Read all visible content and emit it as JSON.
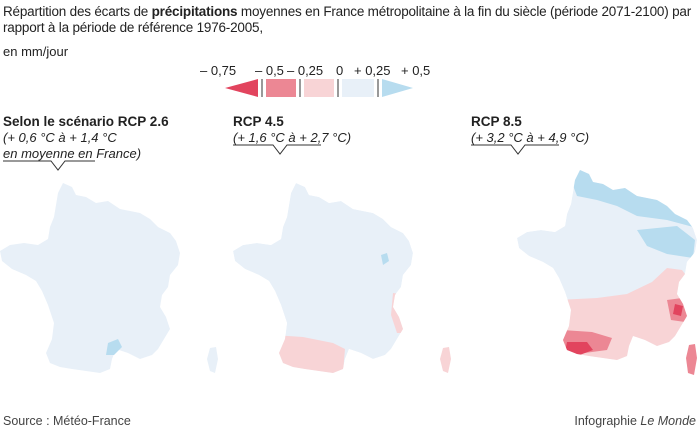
{
  "header": {
    "title_pre": "Répartition des écarts de ",
    "title_bold": "précipitations",
    "title_post": " moyennes en France métropolitaine à la fin du siècle (période 2071-2100) par rapport à la période de référence 1976-2005,",
    "unit": "en mm/jour"
  },
  "legend": {
    "ticks": [
      "– 0,75",
      "– 0,5",
      "– 0,25",
      "0",
      "+ 0,25",
      "+ 0,5"
    ],
    "colors": [
      "#e2445e",
      "#ec8794",
      "#f8d4d6",
      "#e8f0f8",
      "#b7dcef"
    ]
  },
  "panels": [
    {
      "title": "Selon le scénario RCP 2.6",
      "sub1": "(+ 0,6 °C à + 1,4 °C",
      "sub2": "en moyenne en France)"
    },
    {
      "title": "RCP 4.5",
      "sub1": "(+ 1,6 °C à + 2,7 °C)",
      "sub2": ""
    },
    {
      "title": "RCP 8.5",
      "sub1": "(+ 3,2 °C à + 4,9 °C)",
      "sub2": ""
    }
  ],
  "footer": {
    "source": "Source : Météo-France",
    "credit_pre": "Infographie ",
    "credit_italic": "Le Monde"
  },
  "colors": {
    "base": "#e8f0f8",
    "light_blue": "#b7dcef",
    "light_red": "#f8d4d6",
    "mid_red": "#ec8794",
    "dark_red": "#e2445e"
  }
}
